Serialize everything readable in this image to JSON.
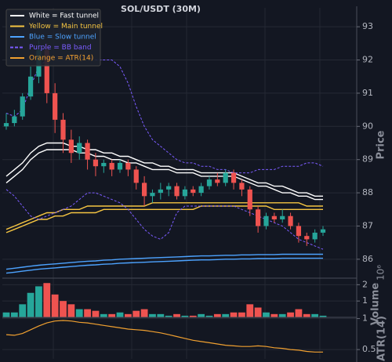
{
  "chart_data": [
    {
      "type": "candlestick",
      "title": "SOL/USDT (30M)",
      "ylabel": "Price",
      "ylim": [
        85.43,
        93.57
      ],
      "yticks": [
        86,
        87,
        88,
        89,
        90,
        91,
        92,
        93
      ],
      "grid": true,
      "up_color": "#26a69a",
      "down_color": "#ef5350",
      "open": [
        90.0,
        90.1,
        90.3,
        90.9,
        91.5,
        92.3,
        91.0,
        90.2,
        89.6,
        89.2,
        89.5,
        89.0,
        88.8,
        88.9,
        88.7,
        88.9,
        88.7,
        88.3,
        87.9,
        88.0,
        88.1,
        88.2,
        87.9,
        88.1,
        88.0,
        88.2,
        88.4,
        88.3,
        88.6,
        88.3,
        88.1,
        87.5,
        87.0,
        87.3,
        87.2,
        87.3,
        87.0,
        86.7,
        86.6,
        86.8
      ],
      "close": [
        90.1,
        90.3,
        90.9,
        91.5,
        92.3,
        91.0,
        90.2,
        89.6,
        89.2,
        89.5,
        89.0,
        88.8,
        88.9,
        88.7,
        88.9,
        88.7,
        88.3,
        87.9,
        88.0,
        88.1,
        88.2,
        87.9,
        88.1,
        88.0,
        88.2,
        88.4,
        88.3,
        88.6,
        88.3,
        88.1,
        87.5,
        87.0,
        87.3,
        87.2,
        87.3,
        87.0,
        86.7,
        86.6,
        86.8,
        86.9
      ],
      "high": [
        90.4,
        90.5,
        91.0,
        91.8,
        92.6,
        92.5,
        91.3,
        90.4,
        89.9,
        89.7,
        89.6,
        89.2,
        89.0,
        89.0,
        89.0,
        89.0,
        88.8,
        88.5,
        88.1,
        88.3,
        88.3,
        88.3,
        88.2,
        88.2,
        88.3,
        88.5,
        88.6,
        88.7,
        88.7,
        88.4,
        88.2,
        87.6,
        87.4,
        87.4,
        87.5,
        87.4,
        87.1,
        86.8,
        86.9,
        87.0
      ],
      "low": [
        89.9,
        90.0,
        90.2,
        90.8,
        91.3,
        90.7,
        89.8,
        89.2,
        88.9,
        89.0,
        88.7,
        88.5,
        88.6,
        88.5,
        88.6,
        88.5,
        88.1,
        87.6,
        87.7,
        87.8,
        87.9,
        87.8,
        87.8,
        87.9,
        87.9,
        88.1,
        88.2,
        88.2,
        88.1,
        87.9,
        87.3,
        86.8,
        86.9,
        87.1,
        87.1,
        86.9,
        86.5,
        86.4,
        86.5,
        86.7
      ],
      "series": [
        {
          "name": "White = Fast tunnel",
          "color": "#ffffff",
          "dashed": false,
          "upper": [
            88.5,
            88.7,
            88.9,
            89.2,
            89.4,
            89.5,
            89.5,
            89.5,
            89.4,
            89.4,
            89.3,
            89.3,
            89.2,
            89.2,
            89.1,
            89.1,
            89.0,
            88.9,
            88.9,
            88.8,
            88.8,
            88.7,
            88.7,
            88.7,
            88.6,
            88.6,
            88.6,
            88.6,
            88.6,
            88.5,
            88.4,
            88.3,
            88.3,
            88.2,
            88.2,
            88.1,
            88.0,
            88.0,
            87.9,
            87.9
          ],
          "lower": [
            88.3,
            88.5,
            88.7,
            89.0,
            89.2,
            89.3,
            89.3,
            89.3,
            89.3,
            89.2,
            89.2,
            89.1,
            89.1,
            89.0,
            89.0,
            88.9,
            88.9,
            88.8,
            88.7,
            88.7,
            88.7,
            88.6,
            88.6,
            88.6,
            88.5,
            88.5,
            88.5,
            88.5,
            88.5,
            88.4,
            88.3,
            88.2,
            88.2,
            88.1,
            88.0,
            88.0,
            87.9,
            87.9,
            87.8,
            87.8
          ]
        },
        {
          "name": "Yellow = Main tunnel",
          "color": "#f5c542",
          "dashed": false,
          "upper": [
            86.9,
            87.0,
            87.1,
            87.2,
            87.3,
            87.4,
            87.4,
            87.5,
            87.5,
            87.5,
            87.6,
            87.6,
            87.6,
            87.6,
            87.6,
            87.6,
            87.6,
            87.6,
            87.7,
            87.7,
            87.7,
            87.7,
            87.7,
            87.7,
            87.7,
            87.7,
            87.7,
            87.7,
            87.7,
            87.7,
            87.7,
            87.7,
            87.7,
            87.7,
            87.7,
            87.7,
            87.7,
            87.6,
            87.6,
            87.6
          ],
          "lower": [
            86.8,
            86.9,
            87.0,
            87.1,
            87.2,
            87.2,
            87.3,
            87.3,
            87.4,
            87.4,
            87.4,
            87.4,
            87.5,
            87.5,
            87.5,
            87.5,
            87.5,
            87.5,
            87.5,
            87.5,
            87.5,
            87.5,
            87.5,
            87.5,
            87.6,
            87.6,
            87.6,
            87.6,
            87.6,
            87.6,
            87.6,
            87.6,
            87.6,
            87.5,
            87.5,
            87.5,
            87.5,
            87.5,
            87.5,
            87.5
          ]
        },
        {
          "name": "Blue = Slow tunnel",
          "color": "#4da3ff",
          "dashed": false,
          "upper": [
            85.7,
            85.73,
            85.76,
            85.79,
            85.82,
            85.84,
            85.86,
            85.88,
            85.9,
            85.92,
            85.94,
            85.95,
            85.97,
            85.98,
            86.0,
            86.01,
            86.02,
            86.03,
            86.04,
            86.05,
            86.06,
            86.07,
            86.08,
            86.09,
            86.1,
            86.1,
            86.11,
            86.12,
            86.12,
            86.13,
            86.13,
            86.14,
            86.14,
            86.14,
            86.15,
            86.15,
            86.15,
            86.15,
            86.15,
            86.15
          ],
          "lower": [
            85.58,
            85.61,
            85.64,
            85.67,
            85.7,
            85.72,
            85.74,
            85.76,
            85.78,
            85.8,
            85.82,
            85.83,
            85.85,
            85.86,
            85.88,
            85.89,
            85.9,
            85.91,
            85.92,
            85.93,
            85.94,
            85.95,
            85.96,
            85.97,
            85.98,
            85.98,
            85.99,
            86.0,
            86.0,
            86.01,
            86.01,
            86.02,
            86.02,
            86.02,
            86.03,
            86.03,
            86.03,
            86.03,
            86.03,
            86.03
          ]
        },
        {
          "name": "Purple = BB band",
          "color": "#7b5cff",
          "dashed": true,
          "upper": [
            90.4,
            90.3,
            90.5,
            91.2,
            91.8,
            92.0,
            92.1,
            92.1,
            92.1,
            92.1,
            92.1,
            92.0,
            92.0,
            92.0,
            91.8,
            91.3,
            90.6,
            90.0,
            89.6,
            89.4,
            89.2,
            89.0,
            88.9,
            88.9,
            88.8,
            88.8,
            88.7,
            88.7,
            88.6,
            88.6,
            88.6,
            88.7,
            88.7,
            88.7,
            88.8,
            88.8,
            88.8,
            88.9,
            88.9,
            88.8
          ],
          "lower": [
            88.1,
            87.9,
            87.6,
            87.3,
            87.2,
            87.3,
            87.4,
            87.5,
            87.6,
            87.8,
            88.0,
            88.0,
            87.9,
            87.8,
            87.7,
            87.5,
            87.2,
            86.9,
            86.7,
            86.6,
            86.8,
            87.4,
            87.6,
            87.6,
            87.6,
            87.6,
            87.6,
            87.6,
            87.6,
            87.5,
            87.4,
            87.3,
            87.2,
            87.1,
            87.0,
            86.8,
            86.6,
            86.5,
            86.4,
            86.3
          ]
        }
      ]
    },
    {
      "type": "bar",
      "ylabel": "Volume",
      "offset_label": "10⁶",
      "ylim": [
        0,
        2.4
      ],
      "yticks": [
        1,
        2
      ],
      "grid": true,
      "values": [
        0.3,
        0.3,
        0.8,
        1.5,
        1.9,
        2.1,
        1.4,
        1.0,
        0.8,
        0.5,
        0.5,
        0.4,
        0.2,
        0.2,
        0.3,
        0.2,
        0.4,
        0.5,
        0.2,
        0.2,
        0.1,
        0.2,
        0.1,
        0.1,
        0.2,
        0.1,
        0.2,
        0.2,
        0.3,
        0.3,
        0.8,
        0.6,
        0.3,
        0.2,
        0.2,
        0.3,
        0.5,
        0.2,
        0.2,
        0.1
      ]
    },
    {
      "type": "line",
      "ylabel": "ATR(14)",
      "ylim": [
        0.35,
        1.02
      ],
      "yticks": [
        0.5,
        1
      ],
      "grid": true,
      "series": [
        {
          "name": "Orange = ATR(14)",
          "color": "#f0a030",
          "values": [
            0.74,
            0.73,
            0.76,
            0.82,
            0.88,
            0.93,
            0.96,
            0.97,
            0.96,
            0.94,
            0.93,
            0.91,
            0.89,
            0.87,
            0.85,
            0.83,
            0.82,
            0.81,
            0.79,
            0.77,
            0.74,
            0.71,
            0.68,
            0.65,
            0.63,
            0.61,
            0.59,
            0.57,
            0.56,
            0.55,
            0.55,
            0.56,
            0.55,
            0.53,
            0.52,
            0.5,
            0.49,
            0.47,
            0.46,
            0.46
          ]
        }
      ]
    }
  ]
}
